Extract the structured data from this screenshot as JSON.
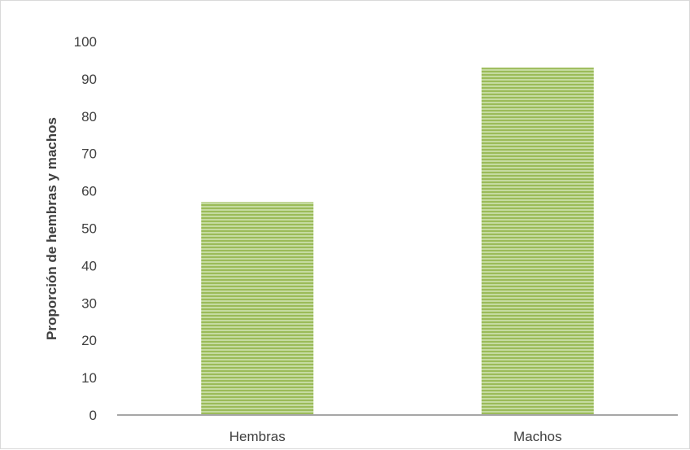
{
  "chart_data": {
    "type": "bar",
    "title": "",
    "xlabel": "",
    "ylabel": "Proporción de hembras y machos",
    "categories": [
      "Hembras",
      "Machos"
    ],
    "values": [
      57,
      93
    ],
    "ylim": [
      0,
      100
    ],
    "yticks": [
      "0",
      "10",
      "20",
      "30",
      "40",
      "50",
      "60",
      "70",
      "80",
      "90",
      "100"
    ],
    "grid": false,
    "legend": "none",
    "bar_color": "#9bbb59",
    "bar_stripe_color": "#c5dba0",
    "axis_color": "#a6a6a6",
    "text_color": "#404040"
  }
}
